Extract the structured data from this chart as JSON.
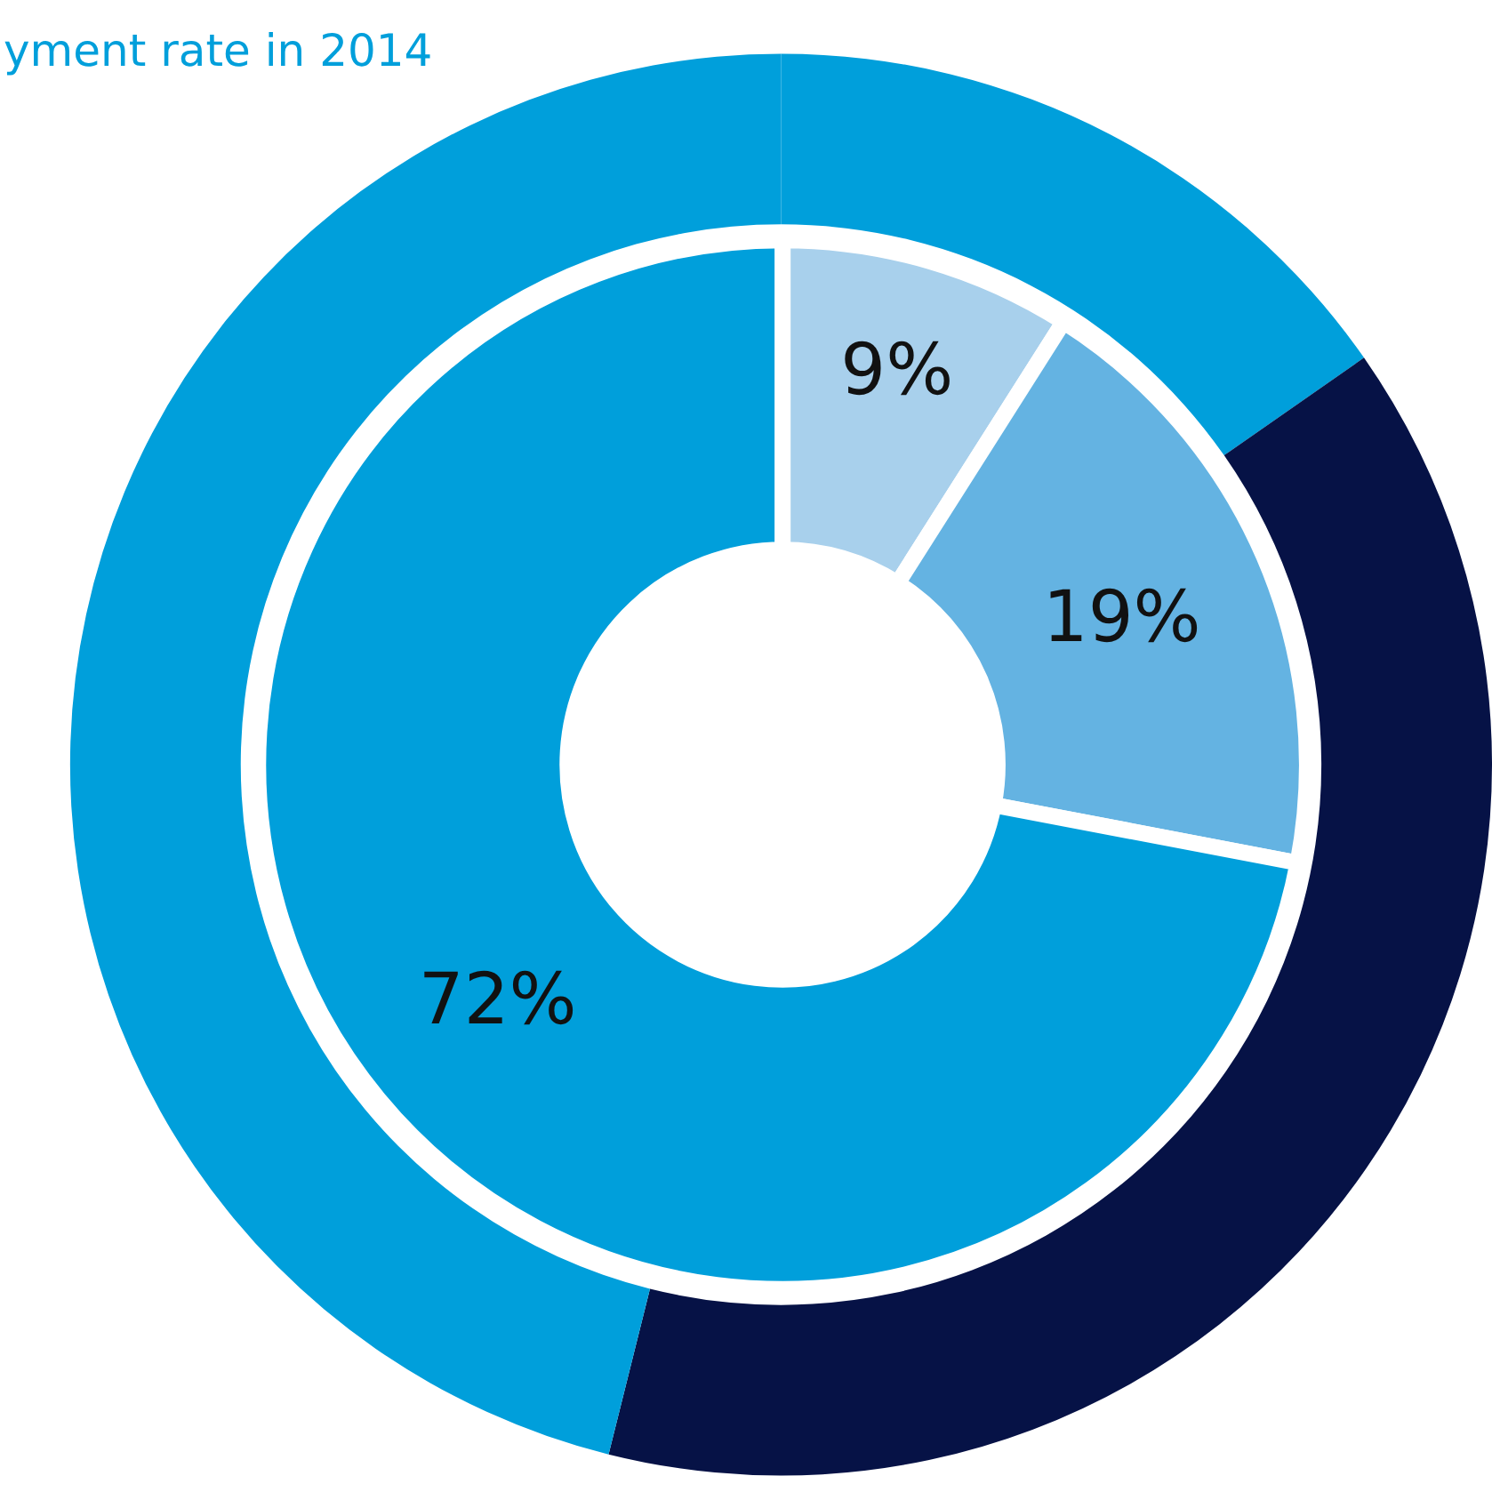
{
  "chart_data": [
    {
      "type": "donut",
      "title": "yment rate in 2014",
      "categories": [
        null,
        null,
        null
      ],
      "values": [
        15.3,
        38.6,
        46.1
      ],
      "colors": [
        "#009fdb",
        "#061246",
        "#009fdb"
      ],
      "legend": false
    },
    {
      "type": "donut",
      "categories": [
        null,
        null,
        null
      ],
      "values": [
        9,
        19,
        72
      ],
      "colors": [
        "#a8d0ec",
        "#64b3e2",
        "#009fdb"
      ],
      "value_labels": [
        "9%",
        "19%",
        "72%"
      ],
      "legend": false
    }
  ]
}
